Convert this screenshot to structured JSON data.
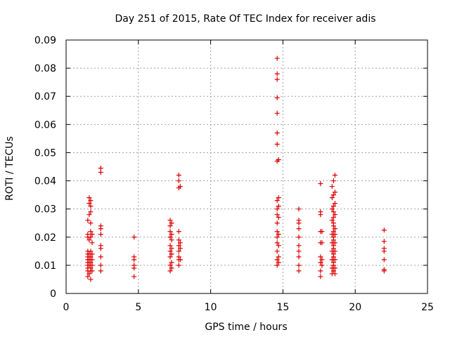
{
  "chart_data": {
    "type": "scatter",
    "title": "Day 251 of 2015, Rate Of TEC Index for receiver adis",
    "xlabel": "GPS time / hours",
    "ylabel": "ROTI / TECUs",
    "xlim": [
      0,
      25
    ],
    "ylim": [
      0,
      0.09
    ],
    "x_ticks": [
      "0",
      "5",
      "10",
      "15",
      "20",
      "25"
    ],
    "y_ticks": [
      "0",
      "0.01",
      "0.02",
      "0.03",
      "0.04",
      "0.05",
      "0.06",
      "0.07",
      "0.08",
      "0.09"
    ],
    "grid": true,
    "marker": "+",
    "color": "#dd0000",
    "series": [
      {
        "points": [
          [
            1.5,
            0.006
          ],
          [
            1.5,
            0.008
          ],
          [
            1.5,
            0.009
          ],
          [
            1.5,
            0.01
          ],
          [
            1.5,
            0.011
          ],
          [
            1.5,
            0.012
          ],
          [
            1.5,
            0.013
          ],
          [
            1.5,
            0.014
          ],
          [
            1.5,
            0.015
          ],
          [
            1.5,
            0.02
          ],
          [
            1.5,
            0.021
          ],
          [
            1.5,
            0.026
          ],
          [
            1.6,
            0.007
          ],
          [
            1.6,
            0.01
          ],
          [
            1.6,
            0.012
          ],
          [
            1.6,
            0.014
          ],
          [
            1.6,
            0.019
          ],
          [
            1.6,
            0.028
          ],
          [
            1.6,
            0.032
          ],
          [
            1.6,
            0.034
          ],
          [
            1.7,
            0.005
          ],
          [
            1.7,
            0.008
          ],
          [
            1.7,
            0.009
          ],
          [
            1.7,
            0.011
          ],
          [
            1.7,
            0.013
          ],
          [
            1.7,
            0.015
          ],
          [
            1.7,
            0.02
          ],
          [
            1.7,
            0.022
          ],
          [
            1.7,
            0.025
          ],
          [
            1.7,
            0.029
          ],
          [
            1.7,
            0.031
          ],
          [
            1.7,
            0.033
          ],
          [
            1.8,
            0.008
          ],
          [
            1.8,
            0.01
          ],
          [
            1.8,
            0.012
          ],
          [
            1.8,
            0.014
          ],
          [
            1.8,
            0.018
          ],
          [
            1.8,
            0.021
          ],
          [
            2.4,
            0.008
          ],
          [
            2.4,
            0.01
          ],
          [
            2.4,
            0.013
          ],
          [
            2.4,
            0.016
          ],
          [
            2.4,
            0.017
          ],
          [
            2.4,
            0.021
          ],
          [
            2.4,
            0.023
          ],
          [
            2.4,
            0.024
          ],
          [
            2.4,
            0.043
          ],
          [
            2.4,
            0.0445
          ],
          [
            4.7,
            0.006
          ],
          [
            4.7,
            0.009
          ],
          [
            4.7,
            0.01
          ],
          [
            4.7,
            0.012
          ],
          [
            4.7,
            0.013
          ],
          [
            4.7,
            0.02
          ],
          [
            7.2,
            0.008
          ],
          [
            7.2,
            0.01
          ],
          [
            7.2,
            0.013
          ],
          [
            7.2,
            0.015
          ],
          [
            7.2,
            0.017
          ],
          [
            7.2,
            0.02
          ],
          [
            7.2,
            0.022
          ],
          [
            7.2,
            0.024
          ],
          [
            7.2,
            0.026
          ],
          [
            7.3,
            0.009
          ],
          [
            7.3,
            0.011
          ],
          [
            7.3,
            0.014
          ],
          [
            7.3,
            0.016
          ],
          [
            7.3,
            0.019
          ],
          [
            7.3,
            0.021
          ],
          [
            7.3,
            0.025
          ],
          [
            7.8,
            0.01
          ],
          [
            7.8,
            0.012
          ],
          [
            7.8,
            0.013
          ],
          [
            7.8,
            0.015
          ],
          [
            7.8,
            0.017
          ],
          [
            7.8,
            0.019
          ],
          [
            7.8,
            0.022
          ],
          [
            7.8,
            0.0375
          ],
          [
            7.8,
            0.04
          ],
          [
            7.8,
            0.042
          ],
          [
            7.9,
            0.012
          ],
          [
            7.9,
            0.016
          ],
          [
            7.9,
            0.018
          ],
          [
            7.9,
            0.038
          ],
          [
            14.6,
            0.01
          ],
          [
            14.6,
            0.012
          ],
          [
            14.6,
            0.015
          ],
          [
            14.6,
            0.018
          ],
          [
            14.6,
            0.02
          ],
          [
            14.6,
            0.022
          ],
          [
            14.6,
            0.025
          ],
          [
            14.6,
            0.028
          ],
          [
            14.6,
            0.03
          ],
          [
            14.6,
            0.033
          ],
          [
            14.6,
            0.047
          ],
          [
            14.6,
            0.053
          ],
          [
            14.6,
            0.057
          ],
          [
            14.6,
            0.064
          ],
          [
            14.6,
            0.0695
          ],
          [
            14.6,
            0.076
          ],
          [
            14.6,
            0.078
          ],
          [
            14.6,
            0.0835
          ],
          [
            14.7,
            0.011
          ],
          [
            14.7,
            0.013
          ],
          [
            14.7,
            0.017
          ],
          [
            14.7,
            0.021
          ],
          [
            14.7,
            0.027
          ],
          [
            14.7,
            0.031
          ],
          [
            14.7,
            0.034
          ],
          [
            14.7,
            0.0475
          ],
          [
            16.1,
            0.008
          ],
          [
            16.1,
            0.01
          ],
          [
            16.1,
            0.013
          ],
          [
            16.1,
            0.015
          ],
          [
            16.1,
            0.017
          ],
          [
            16.1,
            0.02
          ],
          [
            16.1,
            0.023
          ],
          [
            16.1,
            0.025
          ],
          [
            16.1,
            0.026
          ],
          [
            16.1,
            0.03
          ],
          [
            17.6,
            0.006
          ],
          [
            17.6,
            0.008
          ],
          [
            17.6,
            0.011
          ],
          [
            17.6,
            0.013
          ],
          [
            17.6,
            0.018
          ],
          [
            17.6,
            0.022
          ],
          [
            17.6,
            0.028
          ],
          [
            17.6,
            0.029
          ],
          [
            17.6,
            0.039
          ],
          [
            17.7,
            0.01
          ],
          [
            17.7,
            0.012
          ],
          [
            17.7,
            0.018
          ],
          [
            17.7,
            0.022
          ],
          [
            18.4,
            0.007
          ],
          [
            18.4,
            0.009
          ],
          [
            18.4,
            0.012
          ],
          [
            18.4,
            0.015
          ],
          [
            18.4,
            0.018
          ],
          [
            18.4,
            0.021
          ],
          [
            18.4,
            0.026
          ],
          [
            18.4,
            0.03
          ],
          [
            18.4,
            0.034
          ],
          [
            18.4,
            0.038
          ],
          [
            18.5,
            0.008
          ],
          [
            18.5,
            0.01
          ],
          [
            18.5,
            0.011
          ],
          [
            18.5,
            0.013
          ],
          [
            18.5,
            0.014
          ],
          [
            18.5,
            0.016
          ],
          [
            18.5,
            0.017
          ],
          [
            18.5,
            0.019
          ],
          [
            18.5,
            0.02
          ],
          [
            18.5,
            0.022
          ],
          [
            18.5,
            0.024
          ],
          [
            18.5,
            0.025
          ],
          [
            18.5,
            0.027
          ],
          [
            18.5,
            0.029
          ],
          [
            18.5,
            0.031
          ],
          [
            18.5,
            0.035
          ],
          [
            18.5,
            0.04
          ],
          [
            18.6,
            0.007
          ],
          [
            18.6,
            0.009
          ],
          [
            18.6,
            0.012
          ],
          [
            18.6,
            0.015
          ],
          [
            18.6,
            0.018
          ],
          [
            18.6,
            0.021
          ],
          [
            18.6,
            0.023
          ],
          [
            18.6,
            0.028
          ],
          [
            18.6,
            0.032
          ],
          [
            18.6,
            0.036
          ],
          [
            18.6,
            0.042
          ],
          [
            22.0,
            0.008
          ],
          [
            22.0,
            0.0085
          ],
          [
            22.0,
            0.012
          ],
          [
            22.0,
            0.015
          ],
          [
            22.0,
            0.016
          ],
          [
            22.0,
            0.0185
          ],
          [
            22.0,
            0.0225
          ]
        ]
      }
    ]
  }
}
